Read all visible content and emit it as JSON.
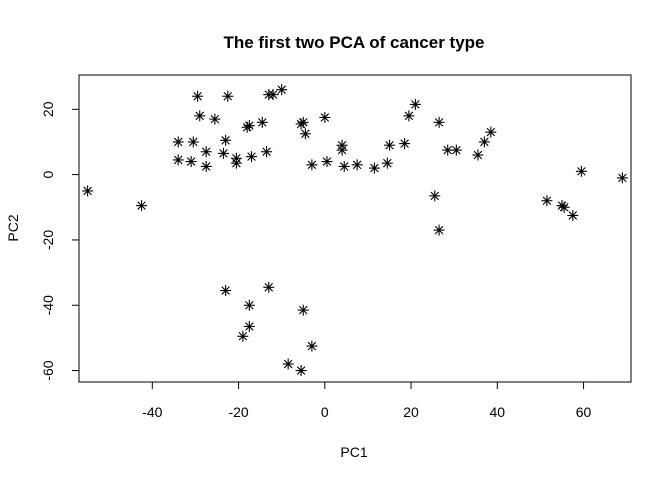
{
  "chart_data": {
    "type": "scatter",
    "title": "The first two PCA of cancer type",
    "xlabel": "PC1",
    "ylabel": "PC2",
    "xlim": [
      -57,
      71
    ],
    "ylim": [
      -63.5,
      30.5
    ],
    "xticks": [
      -40,
      -20,
      0,
      20,
      40,
      60
    ],
    "yticks": [
      -60,
      -40,
      -20,
      0,
      20
    ],
    "marker": "asterisk",
    "grid": false,
    "legend": "none",
    "x": [
      -55,
      -42.5,
      -34,
      -34,
      -31,
      -30.5,
      -29.5,
      -29,
      -27.5,
      -27.5,
      -25.5,
      -23.5,
      -23,
      -22.5,
      -20.5,
      -20.5,
      -18,
      -17.5,
      -17,
      -14.5,
      -13.5,
      -13,
      -12,
      -10,
      -5.5,
      -5,
      -4.5,
      0,
      0.5,
      -3,
      4,
      4,
      4.5,
      7.5,
      11.5,
      14.5,
      15,
      18.5,
      19.5,
      21,
      26.5,
      28.5,
      30.5,
      35.5,
      37,
      38.5,
      25.5,
      26.5,
      51.5,
      55,
      55.5,
      57.5,
      59.5,
      69,
      -23,
      -17.5,
      -17.5,
      -19,
      -13,
      -5,
      -3,
      -8.5,
      -5.5
    ],
    "y": [
      -5,
      -9.5,
      10,
      4.5,
      4,
      10,
      24,
      18,
      7,
      2.5,
      17,
      6.5,
      10.5,
      24,
      5,
      3.5,
      14.5,
      15,
      5.5,
      16,
      7,
      24.5,
      24.5,
      26,
      15.5,
      16,
      12.5,
      17.5,
      4,
      3,
      9,
      7.5,
      2.5,
      3,
      2,
      3.5,
      9,
      9.5,
      18,
      21.5,
      16,
      7.5,
      7.5,
      6,
      10,
      13,
      -6.5,
      -17,
      -8,
      -9.5,
      -10,
      -12.5,
      1,
      -1,
      -35.5,
      -40,
      -46.5,
      -49.5,
      -34.5,
      -41.5,
      -52.5,
      -58,
      -60
    ]
  }
}
